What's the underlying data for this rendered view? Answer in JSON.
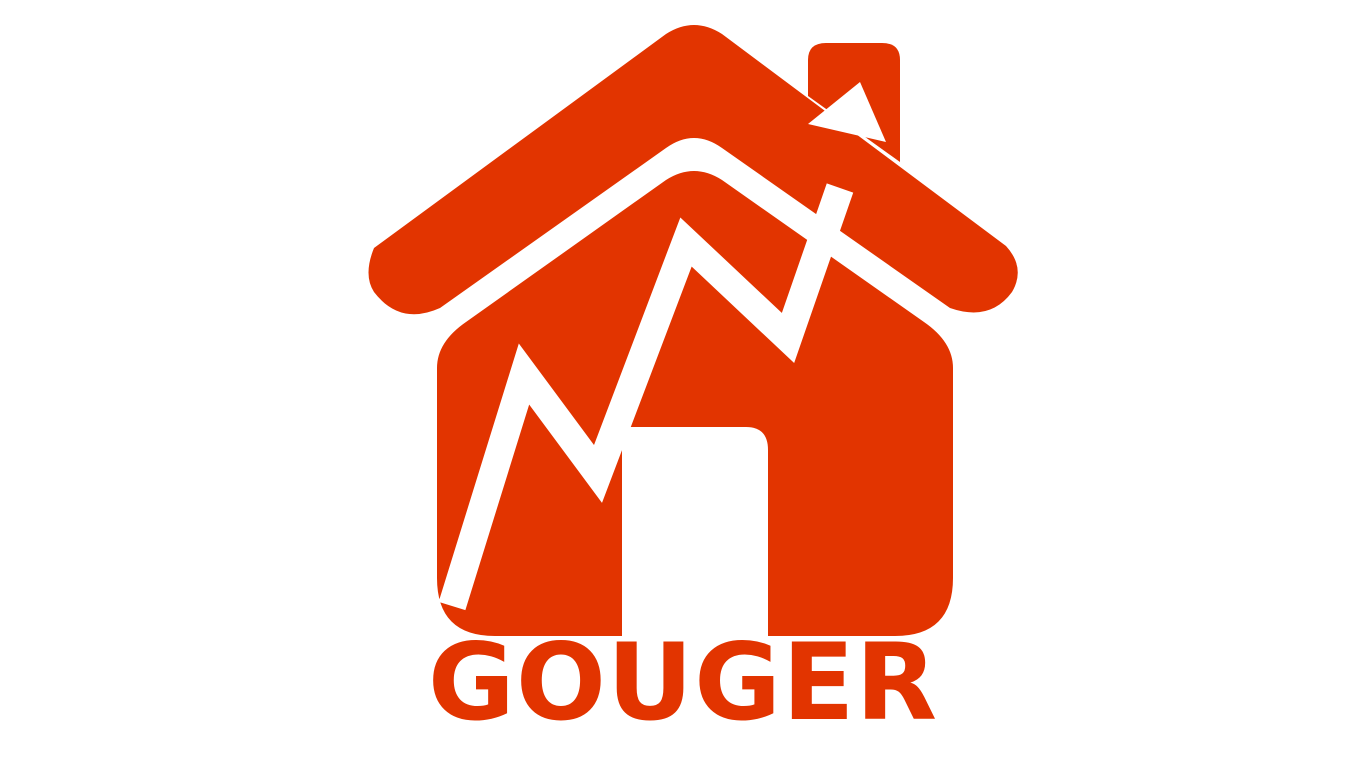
{
  "brand": {
    "name": "GOUGER",
    "color": "#e23400",
    "background": "#ffffff"
  },
  "logo": {
    "icon": "house-with-rising-chart-arrow-icon"
  }
}
